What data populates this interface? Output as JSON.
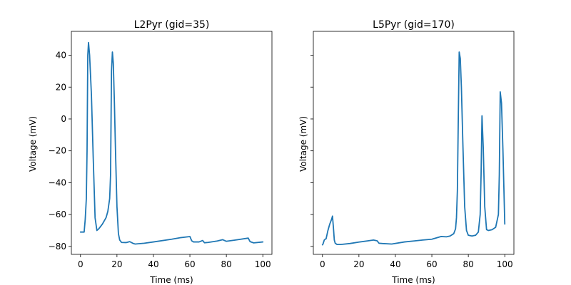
{
  "chart_data": [
    {
      "type": "line",
      "title": "L2Pyr (gid=35)",
      "xlabel": "Time (ms)",
      "ylabel": "Voltage (mV)",
      "xlim": [
        -5,
        105
      ],
      "ylim": [
        -85,
        55
      ],
      "xticks": [
        0,
        20,
        40,
        60,
        80,
        100
      ],
      "yticks": [
        -80,
        -60,
        -40,
        -20,
        0,
        20,
        40
      ],
      "xtick_labels": [
        "0",
        "20",
        "40",
        "60",
        "80",
        "100"
      ],
      "ytick_labels": [
        "−80",
        "−60",
        "−40",
        "−20",
        "0",
        "20",
        "40"
      ],
      "grid": false,
      "color": "#1f77b4",
      "series": [
        {
          "x": [
            0,
            2,
            2.6,
            3.2,
            3.6,
            4.0,
            4.4,
            5.0,
            6.0,
            7.0,
            8.0,
            9.0,
            10.0,
            12.0,
            14.0,
            15.0,
            16.0,
            16.5,
            17.0,
            17.5,
            18.0,
            18.6,
            19.2,
            20.0,
            20.8,
            21.5,
            22.5,
            25.0,
            27.0,
            29.0,
            30.0,
            35.0,
            40.0,
            50.0,
            55.0,
            60.0,
            61.0,
            62.0,
            65.0,
            67.0,
            68.0,
            70.0,
            75.0,
            78.0,
            80.0,
            85.0,
            92.0,
            93.0,
            95.0,
            100.0
          ],
          "y": [
            -71,
            -71,
            -63,
            -50,
            -20,
            40,
            48,
            40,
            15,
            -25,
            -62,
            -70,
            -69,
            -66,
            -62,
            -58,
            -50,
            -35,
            30,
            42,
            35,
            10,
            -20,
            -55,
            -72,
            -76,
            -77.5,
            -77.6,
            -77,
            -78.2,
            -78.5,
            -78,
            -77.2,
            -75.5,
            -74.5,
            -73.8,
            -76.5,
            -77.2,
            -77.2,
            -76.3,
            -77.7,
            -77.5,
            -76.6,
            -75.8,
            -76.8,
            -76,
            -74.8,
            -77,
            -77.8,
            -77.2
          ]
        }
      ]
    },
    {
      "type": "line",
      "title": "L5Pyr (gid=170)",
      "xlabel": "Time (ms)",
      "ylabel": "Voltage (mV)",
      "xlim": [
        -5,
        105
      ],
      "ylim": [
        -85,
        55
      ],
      "xticks": [
        0,
        20,
        40,
        60,
        80,
        100
      ],
      "yticks": [
        -80,
        -60,
        -40,
        -20,
        0,
        20,
        40
      ],
      "xtick_labels": [
        "0",
        "20",
        "40",
        "60",
        "80",
        "100"
      ],
      "ytick_labels": [],
      "grid": false,
      "color": "#1f77b4",
      "series": [
        {
          "x": [
            0,
            0.3,
            1.0,
            1.5,
            2.0,
            3.0,
            4.0,
            5.0,
            5.5,
            6.0,
            6.5,
            7.0,
            8.0,
            10.0,
            15.0,
            20.0,
            25.0,
            28.0,
            30.0,
            31.0,
            33.0,
            38.0,
            45.0,
            50.0,
            55.0,
            60.0,
            63.0,
            65.0,
            68.0,
            70.0,
            72.0,
            73.0,
            73.5,
            74.0,
            74.5,
            75.0,
            75.6,
            76.2,
            77.0,
            78.0,
            79.0,
            80.0,
            82.0,
            84.0,
            85.5,
            86.5,
            87.0,
            87.5,
            88.2,
            89.0,
            90.0,
            91.0,
            93.0,
            95.0,
            96.5,
            97.0,
            97.5,
            98.2,
            99.0,
            100.0
          ],
          "y": [
            -79,
            -78.5,
            -76,
            -75.5,
            -75.2,
            -70,
            -66,
            -63,
            -61,
            -68,
            -76,
            -78,
            -78.8,
            -78.8,
            -78.2,
            -77.3,
            -76.5,
            -76,
            -76.5,
            -78,
            -78.2,
            -78.5,
            -77.2,
            -76.6,
            -76,
            -75.5,
            -74.5,
            -73.8,
            -74,
            -73.5,
            -72,
            -69,
            -62,
            -45,
            0,
            42,
            38,
            20,
            -15,
            -55,
            -70,
            -73,
            -73.5,
            -73,
            -71,
            -60,
            -35,
            2,
            -18,
            -55,
            -69.5,
            -70,
            -69.5,
            -68,
            -60,
            -35,
            17,
            10,
            -20,
            -66
          ]
        }
      ]
    }
  ]
}
